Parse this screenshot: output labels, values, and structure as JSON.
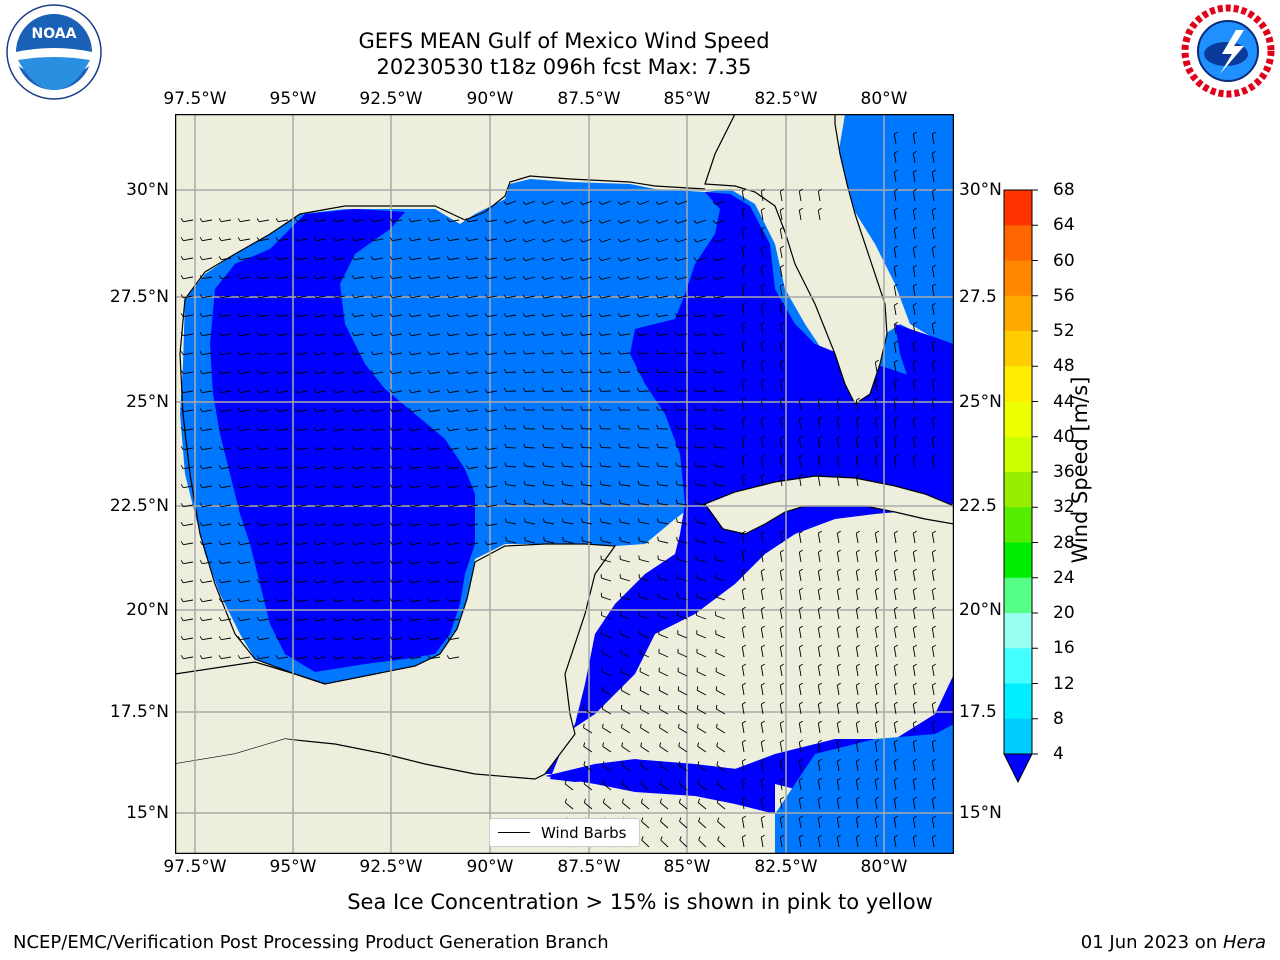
{
  "title": {
    "line1": "GEFS MEAN Gulf of Mexico Wind Speed",
    "line2": "20230530 t18z 096h fcst   Max: 7.35"
  },
  "axes": {
    "lon_labels_top": [
      "97.5°W",
      "95°W",
      "92.5°W",
      "90°W",
      "87.5°W",
      "85°W",
      "82.5°W",
      "80°W"
    ],
    "lon_labels_bottom": [
      "97.5°W",
      "95°W",
      "92.5°W",
      "90°W",
      "87.5°W",
      "85°W",
      "82.5°W",
      "80°W"
    ],
    "lat_labels_left": [
      "30°N",
      "27.5°N",
      "25°N",
      "22.5°N",
      "20°N",
      "17.5°N",
      "15°N"
    ],
    "lat_labels_right": [
      "30°N",
      "27.5",
      "25°N",
      "22.5",
      "20°N",
      "17.5",
      "15°N"
    ]
  },
  "legend": {
    "wind_barbs": "Wind Barbs"
  },
  "colorbar": {
    "label": "Wind Speed [m/s]",
    "ticks": [
      "68",
      "64",
      "60",
      "56",
      "52",
      "48",
      "44",
      "40",
      "36",
      "32",
      "28",
      "24",
      "20",
      "16",
      "12",
      "8",
      "4"
    ],
    "colors": [
      "#ff0000",
      "#ff3300",
      "#ff6600",
      "#ff8800",
      "#ffaa00",
      "#ffcc00",
      "#ffee00",
      "#eeff00",
      "#ccff00",
      "#99ee00",
      "#55ee00",
      "#00ee00",
      "#55ff88",
      "#99ffee",
      "#44ffff",
      "#00eeff",
      "#00ccff",
      "#0077ff"
    ],
    "under_color": "#0000ff",
    "level_colors": {
      "lt4": "#0000ff",
      "4to8": "#0077ff"
    },
    "land_color": "#eeeedd"
  },
  "note": "Sea Ice Concentration > 15% is shown in pink to yellow",
  "footer": {
    "left": "NCEP/EMC/Verification Post Processing Product Generation Branch",
    "date": "01 Jun 2023 on ",
    "machine": "Hera"
  },
  "logos": {
    "noaa": "NOAA",
    "nws": "NATIONAL WEATHER SERVICE"
  }
}
